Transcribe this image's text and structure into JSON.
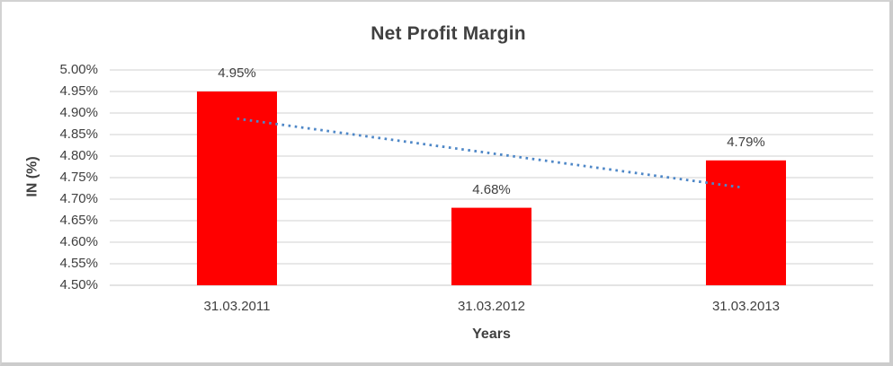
{
  "chart_data": {
    "type": "bar",
    "title": "Net Profit Margin",
    "xlabel": "Years",
    "ylabel": "IN (%)",
    "categories": [
      "31.03.2011",
      "31.03.2012",
      "31.03.2013"
    ],
    "values": [
      4.95,
      4.68,
      4.79
    ],
    "data_labels": [
      "4.95%",
      "4.68%",
      "4.79%"
    ],
    "ylim": [
      4.5,
      5.0
    ],
    "ytick_step": 0.05,
    "ytick_labels": [
      "5.00%",
      "4.95%",
      "4.90%",
      "4.85%",
      "4.80%",
      "4.75%",
      "4.70%",
      "4.65%",
      "4.60%",
      "4.55%",
      "4.50%"
    ],
    "grid": "horizontal",
    "legend": "none",
    "bar_color": "#ff0000",
    "gridline_color": "#d9d9d9",
    "axis_line_color": "#d2d2d2",
    "text_color": "#404040",
    "trendline": {
      "type": "linear",
      "style": "dotted",
      "color": "#4e87c7",
      "start_value": 4.887,
      "end_value": 4.727
    }
  }
}
